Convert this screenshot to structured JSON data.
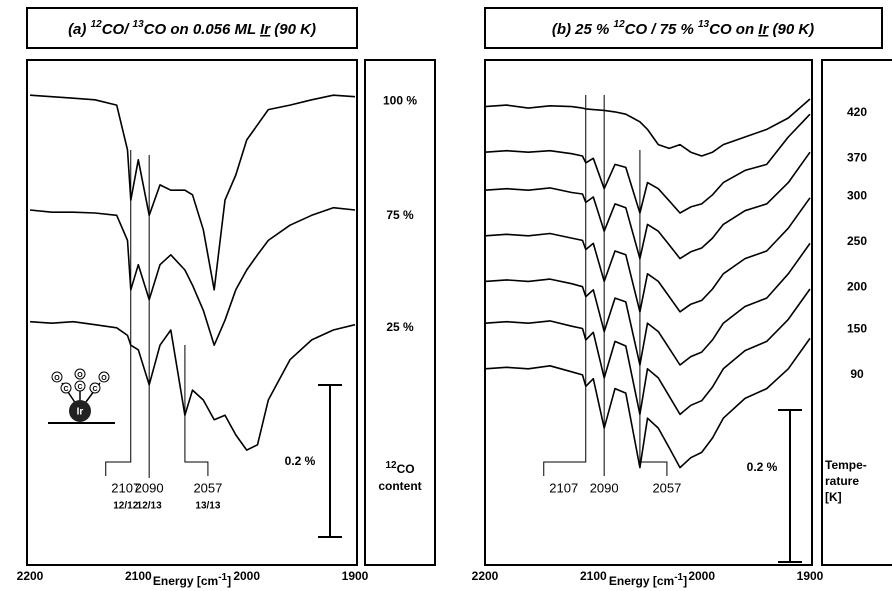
{
  "chart_data": [
    {
      "type": "line",
      "title": [
        "(a) ",
        "12",
        "CO/ ",
        "13",
        "CO on 0.056 ML ",
        "Ir",
        " (90 K)"
      ],
      "x_label": [
        "Energy [cm",
        "-1",
        "]"
      ],
      "x": [
        2200,
        2180,
        2160,
        2140,
        2120,
        2110,
        2107,
        2100,
        2090,
        2080,
        2070,
        2057,
        2050,
        2040,
        2030,
        2020,
        2010,
        2000,
        1990,
        1980,
        1960,
        1940,
        1920,
        1900
      ],
      "xlim": [
        2200,
        1900
      ],
      "xticks": [
        2200,
        2100,
        2000,
        1900
      ],
      "ylim": [
        0,
        0.65
      ],
      "series": [
        {
          "name": "100 %",
          "color": "#000000",
          "values": [
            0.605,
            0.603,
            0.601,
            0.599,
            0.592,
            0.533,
            0.467,
            0.52,
            0.447,
            0.487,
            0.48,
            0.48,
            0.474,
            0.428,
            0.349,
            0.467,
            0.5,
            0.546,
            0.566,
            0.586,
            0.592,
            0.599,
            0.605,
            0.603
          ]
        },
        {
          "name": "75 %",
          "color": "#000000",
          "values": [
            0.454,
            0.451,
            0.451,
            0.45,
            0.447,
            0.414,
            0.349,
            0.382,
            0.336,
            0.382,
            0.395,
            0.375,
            0.355,
            0.322,
            0.276,
            0.309,
            0.349,
            0.375,
            0.395,
            0.414,
            0.434,
            0.447,
            0.457,
            0.454
          ]
        },
        {
          "name": "25 %",
          "color": "#000000",
          "values": [
            0.307,
            0.305,
            0.307,
            0.303,
            0.299,
            0.289,
            0.276,
            0.27,
            0.224,
            0.276,
            0.296,
            0.184,
            0.217,
            0.204,
            0.178,
            0.184,
            0.158,
            0.138,
            0.145,
            0.204,
            0.257,
            0.283,
            0.296,
            0.303
          ]
        }
      ],
      "legend_title": [
        "12",
        "CO",
        "content"
      ],
      "scale_bar": {
        "value": 0.2,
        "label": "0.2 %"
      },
      "peaks": [
        {
          "value": 2107,
          "assignment": "12/12"
        },
        {
          "value": 2090,
          "assignment": "12/13"
        },
        {
          "value": 2057,
          "assignment": "13/13"
        }
      ],
      "inset": {
        "atom": "Ir",
        "ligand": [
          "O",
          "C"
        ]
      }
    },
    {
      "type": "line",
      "title": [
        "(b) 25 % ",
        "12",
        "CO / 75 % ",
        "13",
        "CO on ",
        "Ir",
        " (90 K)"
      ],
      "x_label": [
        "Energy [cm",
        "-1",
        "]"
      ],
      "x": [
        2200,
        2180,
        2160,
        2140,
        2120,
        2110,
        2107,
        2100,
        2090,
        2080,
        2070,
        2057,
        2050,
        2040,
        2030,
        2020,
        2010,
        2000,
        1990,
        1980,
        1960,
        1940,
        1920,
        1900
      ],
      "xlim": [
        2200,
        1900
      ],
      "xticks": [
        2200,
        2100,
        2000,
        1900
      ],
      "ylim": [
        0,
        0.65
      ],
      "series": [
        {
          "name": "420",
          "color": "#000000",
          "values": [
            0.59,
            0.592,
            0.588,
            0.591,
            0.59,
            0.588,
            0.587,
            0.586,
            0.585,
            0.583,
            0.58,
            0.57,
            0.56,
            0.54,
            0.535,
            0.54,
            0.53,
            0.525,
            0.53,
            0.54,
            0.55,
            0.56,
            0.575,
            0.6
          ]
        },
        {
          "name": "370",
          "color": "#000000",
          "values": [
            0.53,
            0.532,
            0.53,
            0.532,
            0.528,
            0.525,
            0.516,
            0.522,
            0.482,
            0.514,
            0.51,
            0.45,
            0.49,
            0.482,
            0.466,
            0.45,
            0.458,
            0.462,
            0.474,
            0.49,
            0.506,
            0.514,
            0.55,
            0.58
          ]
        },
        {
          "name": "300",
          "color": "#000000",
          "values": [
            0.48,
            0.482,
            0.48,
            0.483,
            0.477,
            0.475,
            0.464,
            0.471,
            0.426,
            0.462,
            0.457,
            0.39,
            0.435,
            0.426,
            0.408,
            0.39,
            0.399,
            0.404,
            0.417,
            0.435,
            0.453,
            0.462,
            0.49,
            0.53
          ]
        },
        {
          "name": "250",
          "color": "#000000",
          "values": [
            0.42,
            0.422,
            0.42,
            0.423,
            0.417,
            0.414,
            0.402,
            0.41,
            0.36,
            0.4,
            0.395,
            0.32,
            0.37,
            0.36,
            0.34,
            0.32,
            0.33,
            0.335,
            0.35,
            0.37,
            0.39,
            0.4,
            0.43,
            0.47
          ]
        },
        {
          "name": "200",
          "color": "#000000",
          "values": [
            0.36,
            0.362,
            0.36,
            0.363,
            0.357,
            0.353,
            0.34,
            0.349,
            0.294,
            0.338,
            0.333,
            0.25,
            0.305,
            0.294,
            0.272,
            0.25,
            0.261,
            0.267,
            0.283,
            0.305,
            0.327,
            0.338,
            0.37,
            0.41
          ]
        },
        {
          "name": "150",
          "color": "#000000",
          "values": [
            0.305,
            0.307,
            0.305,
            0.308,
            0.301,
            0.298,
            0.283,
            0.293,
            0.233,
            0.281,
            0.275,
            0.185,
            0.245,
            0.233,
            0.209,
            0.185,
            0.197,
            0.203,
            0.221,
            0.245,
            0.269,
            0.281,
            0.31,
            0.35
          ]
        },
        {
          "name": "90",
          "color": "#000000",
          "values": [
            0.245,
            0.247,
            0.245,
            0.249,
            0.241,
            0.237,
            0.222,
            0.232,
            0.167,
            0.219,
            0.213,
            0.115,
            0.18,
            0.167,
            0.141,
            0.115,
            0.128,
            0.135,
            0.154,
            0.18,
            0.206,
            0.219,
            0.245,
            0.285
          ]
        }
      ],
      "legend_title": [
        "Tempe-",
        "rature",
        "[K]"
      ],
      "scale_bar": {
        "value": 0.2,
        "label": "0.2 %"
      },
      "peaks": [
        {
          "value": 2107
        },
        {
          "value": 2090
        },
        {
          "value": 2057
        }
      ]
    }
  ]
}
